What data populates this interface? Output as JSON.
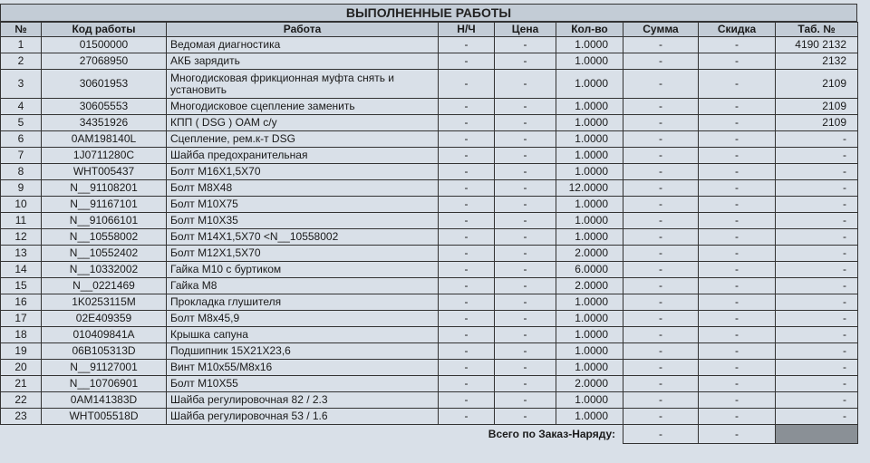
{
  "title": "ВЫПОЛНЕННЫЕ РАБОТЫ",
  "table": {
    "header": [
      "№",
      "Код работы",
      "Работа",
      "Н/Ч",
      "Цена",
      "Кол-во",
      "Сумма",
      "Скидка",
      "Таб. №"
    ],
    "rows": [
      [
        "1",
        "01500000",
        "Ведомая диагностика",
        "-",
        "-",
        "1.0000",
        "-",
        "-",
        "4190 2132"
      ],
      [
        "2",
        "27068950",
        "АКБ зарядить",
        "-",
        "-",
        "1.0000",
        "-",
        "-",
        "2132"
      ],
      [
        "3",
        "30601953",
        "Многодисковая фрикционная муфта снять и установить",
        "-",
        "-",
        "1.0000",
        "-",
        "-",
        "2109"
      ],
      [
        "4",
        "30605553",
        "Многодисковое сцепление заменить",
        "-",
        "-",
        "1.0000",
        "-",
        "-",
        "2109"
      ],
      [
        "5",
        "34351926",
        "КПП ( DSG ) OAM с/у",
        "-",
        "-",
        "1.0000",
        "-",
        "-",
        "2109"
      ],
      [
        "6",
        "0AM198140L",
        "Сцепление, рем.к-т DSG",
        "-",
        "-",
        "1.0000",
        "-",
        "-",
        "-"
      ],
      [
        "7",
        "1J0711280C",
        "Шайба предохранительная",
        "-",
        "-",
        "1.0000",
        "-",
        "-",
        "-"
      ],
      [
        "8",
        "WHT005437",
        "Болт M16X1,5X70",
        "-",
        "-",
        "1.0000",
        "-",
        "-",
        "-"
      ],
      [
        "9",
        "N__91108201",
        "Болт M8X48",
        "-",
        "-",
        "12.0000",
        "-",
        "-",
        "-"
      ],
      [
        "10",
        "N__91167101",
        "Болт M10X75",
        "-",
        "-",
        "1.0000",
        "-",
        "-",
        "-"
      ],
      [
        "11",
        "N__91066101",
        "Болт M10X35",
        "-",
        "-",
        "1.0000",
        "-",
        "-",
        "-"
      ],
      [
        "12",
        "N__10558002",
        "Болт M14X1,5X70 <N__10558002",
        "-",
        "-",
        "1.0000",
        "-",
        "-",
        "-"
      ],
      [
        "13",
        "N__10552402",
        "Болт M12X1,5X70",
        "-",
        "-",
        "2.0000",
        "-",
        "-",
        "-"
      ],
      [
        "14",
        "N__10332002",
        "Гайка M10 с буртиком",
        "-",
        "-",
        "6.0000",
        "-",
        "-",
        "-"
      ],
      [
        "15",
        "N__0221469",
        "Гайка M8",
        "-",
        "-",
        "2.0000",
        "-",
        "-",
        "-"
      ],
      [
        "16",
        "1K0253115M",
        "Прокладка глушителя",
        "-",
        "-",
        "1.0000",
        "-",
        "-",
        "-"
      ],
      [
        "17",
        "02E409359",
        "Болт M8x45,9",
        "-",
        "-",
        "1.0000",
        "-",
        "-",
        "-"
      ],
      [
        "18",
        "010409841A",
        "Крышка сапуна",
        "-",
        "-",
        "1.0000",
        "-",
        "-",
        "-"
      ],
      [
        "19",
        "06B105313D",
        "Подшипник 15X21X23,6",
        "-",
        "-",
        "1.0000",
        "-",
        "-",
        "-"
      ],
      [
        "20",
        "N__91127001",
        "Винт M10x55/M8x16",
        "-",
        "-",
        "1.0000",
        "-",
        "-",
        "-"
      ],
      [
        "21",
        "N__10706901",
        "Болт M10X55",
        "-",
        "-",
        "2.0000",
        "-",
        "-",
        "-"
      ],
      [
        "22",
        "0AM141383D",
        "Шайба регулировочная 82 / 2.3",
        "-",
        "-",
        "1.0000",
        "-",
        "-",
        "-"
      ],
      [
        "23",
        "WHT005518D",
        "Шайба регулировочная 53 / 1.6",
        "-",
        "-",
        "1.0000",
        "-",
        "-",
        "-"
      ]
    ],
    "footer": {
      "label": "Всего по Заказ-Наряду:",
      "values": [
        "-",
        "-"
      ]
    }
  }
}
